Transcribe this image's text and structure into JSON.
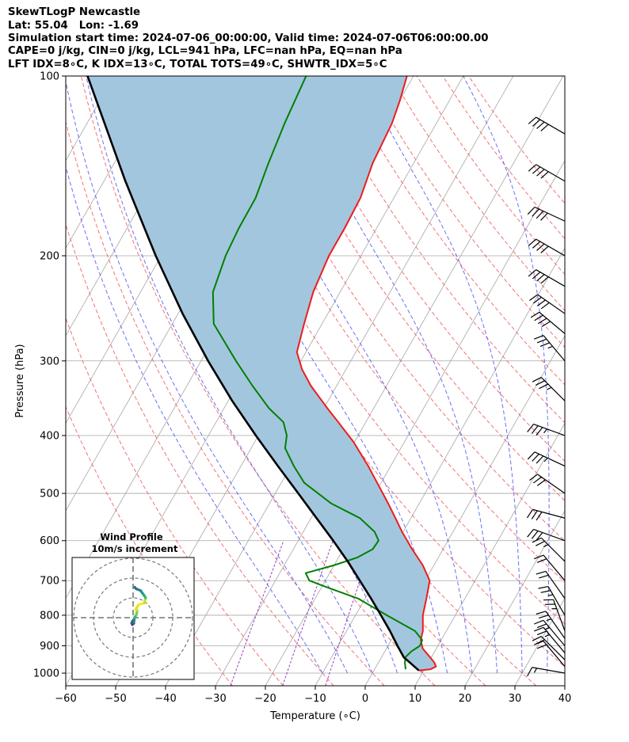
{
  "header": {
    "line1": "SkewTLogP Newcastle",
    "line2": "Lat: 55.04   Lon: -1.69",
    "line3": "Simulation start time: 2024-07-06_00:00:00, Valid time: 2024-07-06T06:00:00.00",
    "line4": "CAPE=0 j/kg, CIN=0 j/kg, LCL=941 hPa, LFC=nan hPa, EQ=nan hPa",
    "line5": "LFT IDX=8∘C, K IDX=13∘C, TOTAL TOTS=49∘C, SHWTR_IDX=5∘C"
  },
  "colors": {
    "temperature": "#ee1c1c",
    "dewpoint": "#008000",
    "parcel": "#000000",
    "cape_fill": "#a3c6df",
    "dry_adiabat": "#f05a5a",
    "moist_adiabat": "#4f58f0",
    "mixing_ratio": "#9a3fc0",
    "isotherm": "#a6a6a6"
  },
  "chart_data": [
    {
      "type": "line",
      "subtype": "skew-T log-P",
      "xlabel": "Temperature (∘C)",
      "ylabel": "Pressure (hPa)",
      "xlim": [
        -60,
        40
      ],
      "ylim": [
        1050,
        100
      ],
      "yscale": "log",
      "xticks": [
        -60,
        -50,
        -40,
        -30,
        -20,
        -10,
        0,
        10,
        20,
        30,
        40
      ],
      "yticks": [
        100,
        200,
        300,
        400,
        500,
        600,
        700,
        800,
        900,
        1000
      ],
      "grid": true,
      "series": [
        {
          "key": "temperature",
          "pressure": [
            990,
            985,
            975,
            960,
            940,
            910,
            880,
            850,
            800,
            750,
            700,
            660,
            620,
            580,
            550,
            520,
            480,
            450,
            410,
            380,
            360,
            330,
            310,
            290,
            260,
            230,
            200,
            180,
            160,
            140,
            120,
            110,
            100
          ],
          "values": [
            9,
            11.2,
            12,
            11.2,
            9.7,
            7.3,
            5.9,
            5.3,
            3.5,
            2.3,
            0.9,
            -2.2,
            -6.2,
            -10.2,
            -13.1,
            -16.2,
            -20.8,
            -24.5,
            -30.2,
            -35.5,
            -39.3,
            -45.2,
            -48.8,
            -51.8,
            -53.6,
            -55.4,
            -56.4,
            -56.4,
            -56.7,
            -58.2,
            -58.9,
            -59.9,
            -61.3
          ]
        },
        {
          "key": "dewpoint",
          "pressure": [
            985,
            960,
            940,
            920,
            900,
            880,
            850,
            800,
            750,
            720,
            700,
            680,
            660,
            640,
            620,
            600,
            580,
            550,
            520,
            480,
            450,
            420,
            400,
            380,
            360,
            330,
            300,
            260,
            230,
            200,
            180,
            160,
            140,
            120,
            100
          ],
          "values": [
            6.2,
            5.3,
            4.8,
            5.3,
            6.4,
            6.2,
            3.7,
            -3.7,
            -11.4,
            -18.5,
            -23.2,
            -24.8,
            -20.1,
            -16.2,
            -14.1,
            -13.9,
            -15.7,
            -20.2,
            -27.6,
            -35.4,
            -39.4,
            -43.2,
            -44.3,
            -46.5,
            -51,
            -56.9,
            -63,
            -71.7,
            -75.5,
            -77.1,
            -77.6,
            -77.7,
            -79.1,
            -80.4,
            -81.5
          ]
        },
        {
          "key": "parcel",
          "pressure": [
            990,
            960,
            941,
            900,
            850,
            800,
            750,
            700,
            650,
            600,
            550,
            500,
            450,
            400,
            350,
            300,
            250,
            200,
            150,
            100
          ],
          "values": [
            9,
            6.3,
            4.5,
            1.9,
            -1.3,
            -4.9,
            -8.8,
            -13.1,
            -17.7,
            -23,
            -28.9,
            -35.4,
            -42.6,
            -50.5,
            -59.2,
            -68.6,
            -79.1,
            -91.1,
            -105.7,
            -125.3
          ]
        }
      ],
      "cape_region": "shaded between temperature and parcel profiles",
      "wind_barbs": {
        "pressure": [
          1000,
          975,
          950,
          925,
          900,
          875,
          850,
          800,
          750,
          700,
          650,
          600,
          550,
          500,
          450,
          400,
          350,
          300,
          270,
          250,
          225,
          200,
          175,
          150,
          125,
          100
        ],
        "speed_kt": [
          15,
          20,
          20,
          25,
          25,
          25,
          25,
          25,
          20,
          20,
          25,
          30,
          30,
          30,
          35,
          35,
          35,
          35,
          40,
          40,
          40,
          40,
          40,
          40,
          40,
          40
        ],
        "direction_deg": [
          280,
          320,
          315,
          320,
          320,
          325,
          340,
          330,
          325,
          320,
          315,
          290,
          285,
          305,
          295,
          290,
          315,
          320,
          310,
          305,
          300,
          300,
          295,
          300,
          300,
          295
        ]
      }
    },
    {
      "type": "scatter",
      "subtype": "hodograph",
      "title": "Wind Profile",
      "subtitle": "10m/s increment",
      "ring_spacing_ms": 10,
      "u": [
        0.5,
        0.5,
        -0.5,
        -1,
        -0.5,
        0,
        0.8,
        1,
        1,
        2.3,
        3,
        2,
        4,
        8,
        9,
        9,
        8,
        6.5,
        5.5,
        3,
        2,
        1.2
      ],
      "v": [
        -2,
        -4,
        -5,
        -4,
        -2.5,
        -4,
        -2,
        -0.5,
        0,
        2,
        5,
        6,
        9.5,
        10.5,
        14,
        14.5,
        16,
        18,
        19.5,
        20.5,
        21,
        22
      ],
      "color_order": "purple (low) to yellow then teal (high)"
    }
  ]
}
